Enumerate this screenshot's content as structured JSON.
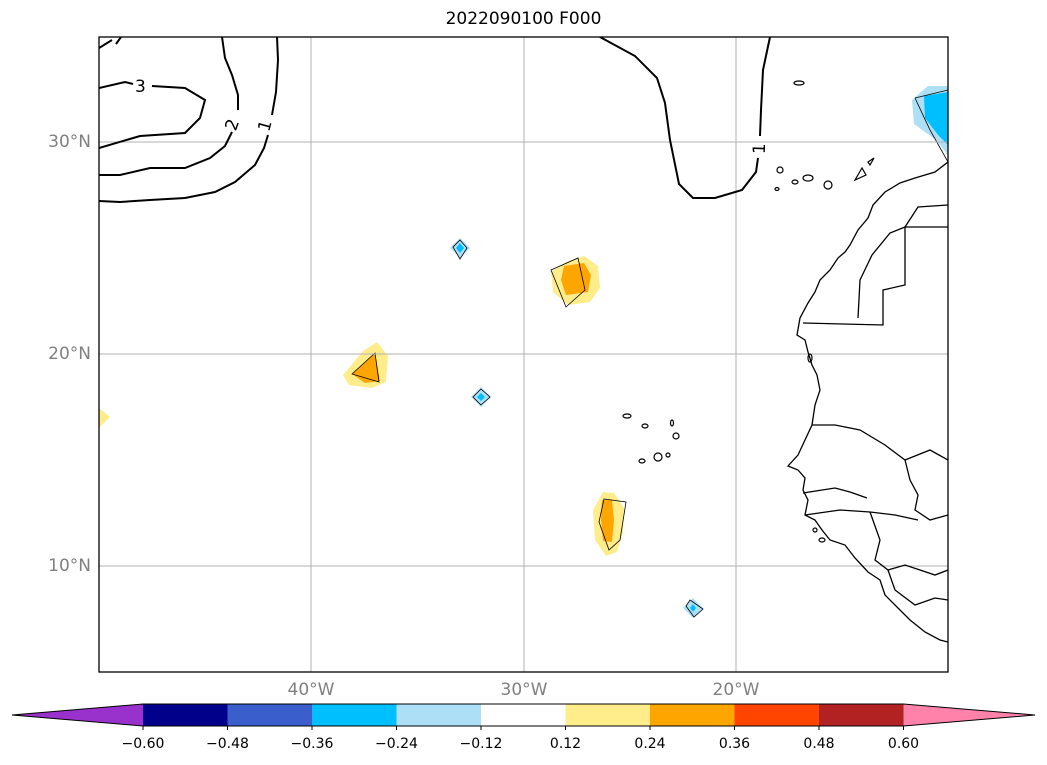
{
  "title": "2022090100 F000",
  "map": {
    "lat_ticks": [
      "30°N",
      "20°N",
      "10°N"
    ],
    "lon_ticks": [
      "40°W",
      "30°W",
      "20°W"
    ],
    "extent": {
      "lon_min": -50,
      "lon_max": -10,
      "lat_min": 5,
      "lat_max": 35
    },
    "gridlines": true,
    "contour_labels": [
      "3",
      "2",
      "1",
      "1"
    ]
  },
  "colorbar": {
    "tick_labels": [
      "−0.60",
      "−0.48",
      "−0.36",
      "−0.24",
      "−0.12",
      "0.12",
      "0.24",
      "0.36",
      "0.48",
      "0.60"
    ],
    "colors": [
      "#9932CC",
      "#00008B",
      "#3A5FCD",
      "#00BFFF",
      "#ADE0F7",
      "#FFFFFF",
      "#FFEC8B",
      "#FFA500",
      "#FF4500",
      "#B22222",
      "#FF82AB"
    ],
    "extend": "both"
  },
  "legend_colors": {
    "light_yellow": "#FFEC8B",
    "orange": "#FFA500",
    "light_blue": "#ADE0F7",
    "deep_sky_blue": "#00BFFF"
  }
}
